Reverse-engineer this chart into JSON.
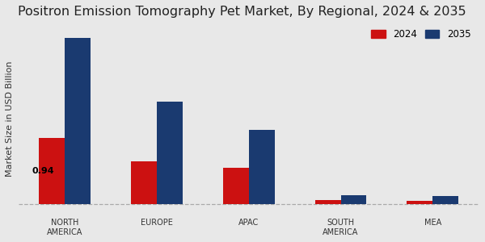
{
  "title": "Positron Emission Tomography Pet Market, By Regional, 2024 & 2035",
  "ylabel": "Market Size in USD Billion",
  "categories": [
    "NORTH\nAMERICA",
    "EUROPE",
    "APAC",
    "SOUTH\nAMERICA",
    "MEA"
  ],
  "values_2024": [
    0.94,
    0.6,
    0.52,
    0.055,
    0.045
  ],
  "values_2035": [
    2.35,
    1.45,
    1.05,
    0.13,
    0.115
  ],
  "color_2024": "#cc1111",
  "color_2035": "#1a3a70",
  "label_2024": "2024",
  "label_2035": "2035",
  "annotation_text": "0.94",
  "background_color": "#e8e8e8",
  "bar_width": 0.28,
  "title_fontsize": 11.5,
  "axis_label_fontsize": 8,
  "tick_fontsize": 7,
  "legend_fontsize": 8.5
}
